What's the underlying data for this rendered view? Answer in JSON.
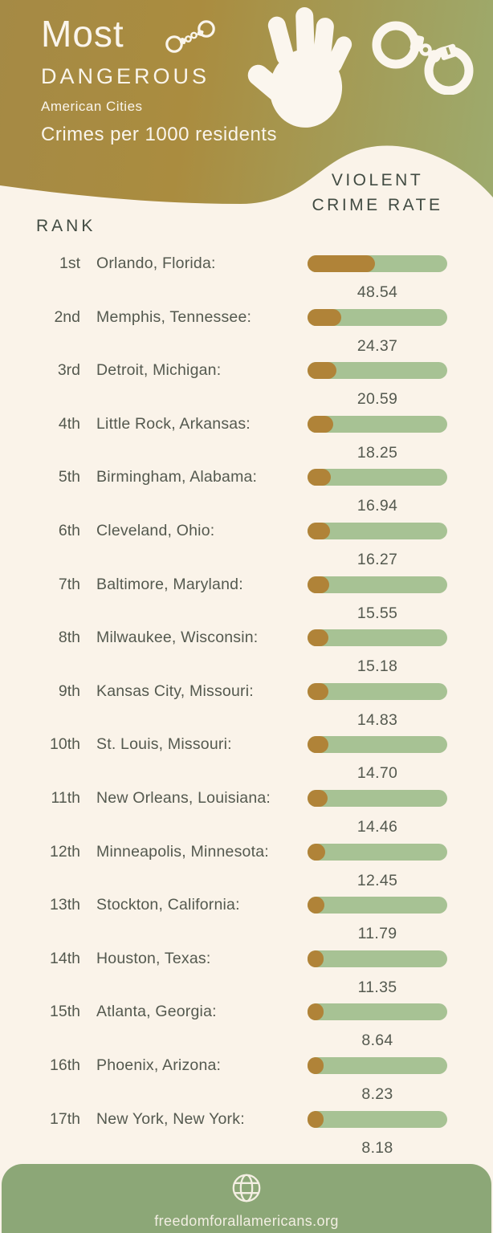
{
  "header": {
    "title": "Most",
    "subtitle": "DANGEROUS",
    "tagline": "American Cities",
    "metric_label": "Crimes per 1000 residents",
    "icons": [
      "handcuffs-small-icon",
      "handprint-icon",
      "handcuffs-icon"
    ]
  },
  "columns": {
    "rank_header": "RANK",
    "value_header_line1": "VIOLENT",
    "value_header_line2": "CRIME RATE"
  },
  "chart_data": {
    "type": "bar",
    "title": "Most Dangerous American Cities",
    "unit": "crimes per 1000 residents",
    "value_label": "Violent crime rate",
    "xlim": [
      0,
      100
    ],
    "categories": [
      "Orlando, Florida",
      "Memphis, Tennessee",
      "Detroit, Michigan",
      "Little Rock, Arkansas",
      "Birmingham, Alabama",
      "Cleveland, Ohio",
      "Baltimore, Maryland",
      "Milwaukee, Wisconsin",
      "Kansas City, Missouri",
      "St. Louis, Missouri",
      "New Orleans, Louisiana",
      "Minneapolis, Minnesota",
      "Stockton, California",
      "Houston, Texas",
      "Atlanta, Georgia",
      "Phoenix, Arizona",
      "New York, New York"
    ],
    "values": [
      48.54,
      24.37,
      20.59,
      18.25,
      16.94,
      16.27,
      15.55,
      15.18,
      14.83,
      14.7,
      14.46,
      12.45,
      11.79,
      11.35,
      8.64,
      8.23,
      8.18
    ],
    "rows": [
      {
        "rank": "1st",
        "city": "Orlando, Florida:",
        "value": 48.54,
        "value_display": "48.54"
      },
      {
        "rank": "2nd",
        "city": "Memphis, Tennessee:",
        "value": 24.37,
        "value_display": "24.37"
      },
      {
        "rank": "3rd",
        "city": "Detroit, Michigan:",
        "value": 20.59,
        "value_display": "20.59"
      },
      {
        "rank": "4th",
        "city": "Little Rock, Arkansas:",
        "value": 18.25,
        "value_display": "18.25"
      },
      {
        "rank": "5th",
        "city": "Birmingham, Alabama:",
        "value": 16.94,
        "value_display": "16.94"
      },
      {
        "rank": "6th",
        "city": "Cleveland, Ohio:",
        "value": 16.27,
        "value_display": "16.27"
      },
      {
        "rank": "7th",
        "city": "Baltimore, Maryland:",
        "value": 15.55,
        "value_display": "15.55"
      },
      {
        "rank": "8th",
        "city": "Milwaukee, Wisconsin:",
        "value": 15.18,
        "value_display": "15.18"
      },
      {
        "rank": "9th",
        "city": "Kansas City, Missouri:",
        "value": 14.83,
        "value_display": "14.83"
      },
      {
        "rank": "10th",
        "city": "St. Louis, Missouri:",
        "value": 14.7,
        "value_display": "14.70"
      },
      {
        "rank": "11th",
        "city": "New Orleans, Louisiana:",
        "value": 14.46,
        "value_display": "14.46"
      },
      {
        "rank": "12th",
        "city": "Minneapolis, Minnesota:",
        "value": 12.45,
        "value_display": "12.45"
      },
      {
        "rank": "13th",
        "city": "Stockton, California:",
        "value": 11.79,
        "value_display": "11.79"
      },
      {
        "rank": "14th",
        "city": "Houston, Texas:",
        "value": 11.35,
        "value_display": "11.35"
      },
      {
        "rank": "15th",
        "city": "Atlanta, Georgia:",
        "value": 8.64,
        "value_display": "8.64"
      },
      {
        "rank": "16th",
        "city": "Phoenix, Arizona:",
        "value": 8.23,
        "value_display": "8.23"
      },
      {
        "rank": "17th",
        "city": "New York, New York:",
        "value": 8.18,
        "value_display": "8.18"
      }
    ]
  },
  "footer": {
    "website": "freedomforallamericans.org",
    "icon": "globe-icon"
  },
  "colors": {
    "background": "#faf3e9",
    "bar_fill": "#b08338",
    "bar_track": "#a7c294",
    "footer_green": "#8ca777",
    "heading_text": "#414b42",
    "body_text": "#54594f",
    "header_gradient": [
      "#a58a45",
      "#aa8c3f",
      "#9dab6e"
    ]
  }
}
